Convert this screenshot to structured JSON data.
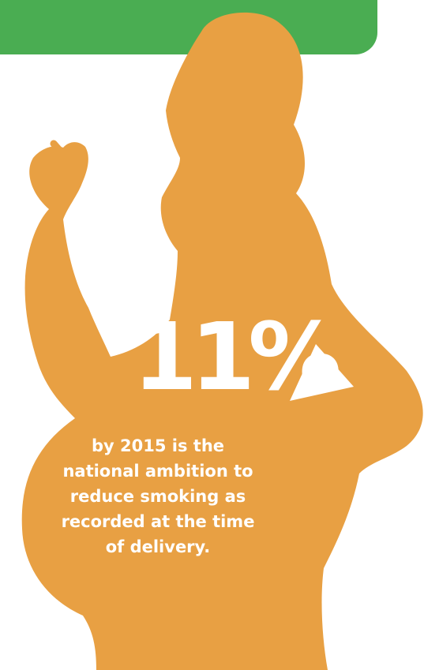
{
  "colors": {
    "background": "#ffffff",
    "banner": "#4aad52",
    "silhouette": "#e8a043",
    "arrow": "#ffffff",
    "text": "#ffffff"
  },
  "illustration": {
    "subject": "pregnant-woman-smoking-silhouette",
    "arrow_icon": "play-triangle-icon"
  },
  "statistic": {
    "value": "11%",
    "caption_lines": [
      "by 2015 is the",
      "national ambition to",
      "reduce smoking as",
      "recorded at the time",
      "of delivery."
    ]
  }
}
